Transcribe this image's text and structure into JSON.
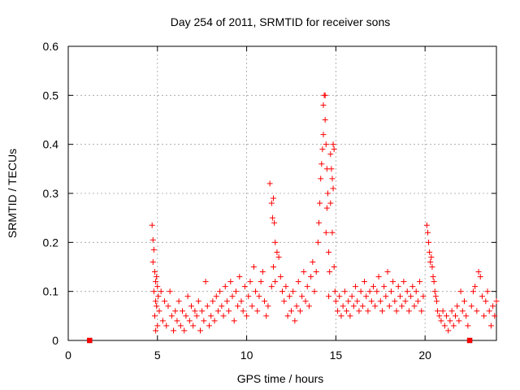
{
  "chart_data": {
    "type": "scatter",
    "title": "Day 254 of 2011, SRMTID for receiver sons",
    "xlabel": "GPS time / hours",
    "ylabel": "SRMTID / TECUs",
    "xlim": [
      0,
      24
    ],
    "ylim": [
      0,
      0.6
    ],
    "x_ticks": [
      0,
      5,
      10,
      15,
      20
    ],
    "y_ticks": [
      "0",
      "0.1",
      "0.2",
      "0.3",
      "0.4",
      "0.5",
      "0.6"
    ],
    "x_tick_labels": [
      "0",
      "5",
      "10",
      "15",
      "20"
    ],
    "grid": true,
    "marker": "+",
    "color": "#ff0000",
    "zero_markers": [
      {
        "x": 1.2,
        "y": 0
      },
      {
        "x": 22.5,
        "y": 0
      }
    ],
    "series": [
      {
        "name": "SRMTID",
        "points": [
          [
            4.7,
            0.235
          ],
          [
            4.75,
            0.205
          ],
          [
            4.8,
            0.185
          ],
          [
            4.75,
            0.16
          ],
          [
            4.85,
            0.14
          ],
          [
            4.9,
            0.12
          ],
          [
            4.8,
            0.1
          ],
          [
            4.95,
            0.13
          ],
          [
            5.0,
            0.11
          ],
          [
            4.9,
            0.08
          ],
          [
            4.85,
            0.05
          ],
          [
            4.9,
            0.02
          ],
          [
            5.0,
            0.03
          ],
          [
            4.95,
            0.07
          ],
          [
            5.05,
            0.09
          ],
          [
            5.1,
            0.06
          ],
          [
            5.2,
            0.1
          ],
          [
            5.3,
            0.04
          ],
          [
            5.4,
            0.08
          ],
          [
            5.5,
            0.03
          ],
          [
            5.6,
            0.07
          ],
          [
            5.7,
            0.1
          ],
          [
            5.8,
            0.05
          ],
          [
            5.9,
            0.02
          ],
          [
            6.0,
            0.06
          ],
          [
            6.1,
            0.04
          ],
          [
            6.2,
            0.08
          ],
          [
            6.3,
            0.03
          ],
          [
            6.4,
            0.06
          ],
          [
            6.5,
            0.02
          ],
          [
            6.6,
            0.05
          ],
          [
            6.7,
            0.09
          ],
          [
            6.8,
            0.04
          ],
          [
            6.9,
            0.07
          ],
          [
            7.0,
            0.03
          ],
          [
            7.1,
            0.06
          ],
          [
            7.2,
            0.05
          ],
          [
            7.3,
            0.08
          ],
          [
            7.4,
            0.02
          ],
          [
            7.5,
            0.06
          ],
          [
            7.6,
            0.04
          ],
          [
            7.7,
            0.12
          ],
          [
            7.8,
            0.07
          ],
          [
            7.9,
            0.03
          ],
          [
            8.0,
            0.05
          ],
          [
            8.1,
            0.08
          ],
          [
            8.2,
            0.04
          ],
          [
            8.3,
            0.09
          ],
          [
            8.4,
            0.06
          ],
          [
            8.5,
            0.1
          ],
          [
            8.6,
            0.07
          ],
          [
            8.7,
            0.05
          ],
          [
            8.8,
            0.11
          ],
          [
            8.9,
            0.08
          ],
          [
            9.0,
            0.06
          ],
          [
            9.1,
            0.12
          ],
          [
            9.2,
            0.09
          ],
          [
            9.3,
            0.04
          ],
          [
            9.4,
            0.1
          ],
          [
            9.5,
            0.07
          ],
          [
            9.6,
            0.13
          ],
          [
            9.7,
            0.08
          ],
          [
            9.8,
            0.06
          ],
          [
            9.9,
            0.11
          ],
          [
            10.0,
            0.05
          ],
          [
            10.1,
            0.09
          ],
          [
            10.2,
            0.12
          ],
          [
            10.3,
            0.07
          ],
          [
            10.4,
            0.15
          ],
          [
            10.5,
            0.1
          ],
          [
            10.6,
            0.06
          ],
          [
            10.7,
            0.09
          ],
          [
            10.8,
            0.12
          ],
          [
            10.9,
            0.14
          ],
          [
            11.0,
            0.08
          ],
          [
            11.1,
            0.05
          ],
          [
            11.3,
            0.32
          ],
          [
            11.4,
            0.28
          ],
          [
            11.5,
            0.29
          ],
          [
            11.45,
            0.25
          ],
          [
            11.55,
            0.24
          ],
          [
            11.6,
            0.2
          ],
          [
            11.5,
            0.15
          ],
          [
            11.7,
            0.18
          ],
          [
            11.6,
            0.12
          ],
          [
            11.8,
            0.17
          ],
          [
            11.9,
            0.13
          ],
          [
            12.0,
            0.1
          ],
          [
            12.1,
            0.08
          ],
          [
            11.4,
            0.11
          ],
          [
            11.2,
            0.07
          ],
          [
            12.2,
            0.11
          ],
          [
            12.3,
            0.05
          ],
          [
            12.4,
            0.09
          ],
          [
            12.5,
            0.06
          ],
          [
            12.6,
            0.1
          ],
          [
            12.7,
            0.04
          ],
          [
            12.8,
            0.07
          ],
          [
            12.9,
            0.12
          ],
          [
            13.0,
            0.06
          ],
          [
            13.1,
            0.09
          ],
          [
            13.2,
            0.14
          ],
          [
            13.3,
            0.08
          ],
          [
            13.4,
            0.11
          ],
          [
            13.5,
            0.07
          ],
          [
            13.6,
            0.13
          ],
          [
            13.7,
            0.16
          ],
          [
            13.8,
            0.1
          ],
          [
            13.9,
            0.14
          ],
          [
            14.0,
            0.2
          ],
          [
            14.05,
            0.24
          ],
          [
            14.1,
            0.28
          ],
          [
            14.15,
            0.33
          ],
          [
            14.2,
            0.36
          ],
          [
            14.25,
            0.39
          ],
          [
            14.3,
            0.42
          ],
          [
            14.3,
            0.48
          ],
          [
            14.35,
            0.5
          ],
          [
            14.4,
            0.5
          ],
          [
            14.4,
            0.45
          ],
          [
            14.45,
            0.4
          ],
          [
            14.5,
            0.35
          ],
          [
            14.55,
            0.3
          ],
          [
            14.5,
            0.27
          ],
          [
            14.45,
            0.22
          ],
          [
            14.6,
            0.18
          ],
          [
            14.65,
            0.14
          ],
          [
            14.7,
            0.38
          ],
          [
            14.75,
            0.35
          ],
          [
            14.8,
            0.33
          ],
          [
            14.85,
            0.31
          ],
          [
            14.7,
            0.28
          ],
          [
            14.8,
            0.22
          ],
          [
            14.9,
            0.15
          ],
          [
            14.95,
            0.1
          ],
          [
            14.6,
            0.09
          ],
          [
            14.9,
            0.39
          ],
          [
            14.85,
            0.4
          ],
          [
            15.0,
            0.08
          ],
          [
            15.1,
            0.06
          ],
          [
            15.2,
            0.09
          ],
          [
            15.3,
            0.05
          ],
          [
            15.4,
            0.07
          ],
          [
            15.5,
            0.1
          ],
          [
            15.6,
            0.06
          ],
          [
            15.7,
            0.08
          ],
          [
            15.8,
            0.05
          ],
          [
            15.9,
            0.09
          ],
          [
            16.0,
            0.07
          ],
          [
            16.1,
            0.11
          ],
          [
            16.2,
            0.08
          ],
          [
            16.3,
            0.06
          ],
          [
            16.4,
            0.1
          ],
          [
            16.5,
            0.07
          ],
          [
            16.6,
            0.12
          ],
          [
            16.7,
            0.09
          ],
          [
            16.8,
            0.06
          ],
          [
            16.9,
            0.1
          ],
          [
            17.0,
            0.08
          ],
          [
            17.1,
            0.11
          ],
          [
            17.2,
            0.07
          ],
          [
            17.3,
            0.1
          ],
          [
            17.4,
            0.13
          ],
          [
            17.5,
            0.08
          ],
          [
            17.6,
            0.06
          ],
          [
            17.7,
            0.11
          ],
          [
            17.8,
            0.09
          ],
          [
            17.9,
            0.14
          ],
          [
            18.0,
            0.07
          ],
          [
            18.1,
            0.1
          ],
          [
            18.2,
            0.12
          ],
          [
            18.3,
            0.08
          ],
          [
            18.4,
            0.06
          ],
          [
            18.5,
            0.11
          ],
          [
            18.6,
            0.09
          ],
          [
            18.7,
            0.07
          ],
          [
            18.8,
            0.12
          ],
          [
            18.9,
            0.08
          ],
          [
            19.0,
            0.1
          ],
          [
            19.1,
            0.06
          ],
          [
            19.2,
            0.09
          ],
          [
            19.3,
            0.11
          ],
          [
            19.4,
            0.07
          ],
          [
            19.5,
            0.1
          ],
          [
            19.6,
            0.08
          ],
          [
            19.7,
            0.12
          ],
          [
            19.8,
            0.06
          ],
          [
            19.9,
            0.09
          ],
          [
            20.1,
            0.235
          ],
          [
            20.15,
            0.22
          ],
          [
            20.2,
            0.2
          ],
          [
            20.25,
            0.18
          ],
          [
            20.3,
            0.16
          ],
          [
            20.35,
            0.17
          ],
          [
            20.4,
            0.15
          ],
          [
            20.45,
            0.13
          ],
          [
            20.5,
            0.12
          ],
          [
            20.55,
            0.1
          ],
          [
            20.6,
            0.09
          ],
          [
            20.65,
            0.08
          ],
          [
            20.7,
            0.06
          ],
          [
            20.8,
            0.05
          ],
          [
            20.9,
            0.04
          ],
          [
            21.0,
            0.06
          ],
          [
            21.1,
            0.03
          ],
          [
            21.2,
            0.05
          ],
          [
            21.3,
            0.02
          ],
          [
            21.4,
            0.04
          ],
          [
            21.5,
            0.06
          ],
          [
            21.6,
            0.03
          ],
          [
            21.7,
            0.05
          ],
          [
            21.8,
            0.07
          ],
          [
            21.9,
            0.04
          ],
          [
            22.0,
            0.1
          ],
          [
            22.1,
            0.06
          ],
          [
            22.2,
            0.08
          ],
          [
            22.3,
            0.05
          ],
          [
            22.4,
            0.03
          ],
          [
            22.6,
            0.07
          ],
          [
            22.7,
            0.1
          ],
          [
            22.8,
            0.11
          ],
          [
            22.9,
            0.06
          ],
          [
            23.0,
            0.14
          ],
          [
            23.1,
            0.13
          ],
          [
            23.2,
            0.09
          ],
          [
            23.3,
            0.05
          ],
          [
            23.4,
            0.08
          ],
          [
            23.5,
            0.1
          ],
          [
            23.6,
            0.06
          ],
          [
            23.7,
            0.03
          ],
          [
            23.8,
            0.07
          ],
          [
            23.9,
            0.05
          ],
          [
            24.0,
            0.08
          ]
        ]
      }
    ]
  }
}
